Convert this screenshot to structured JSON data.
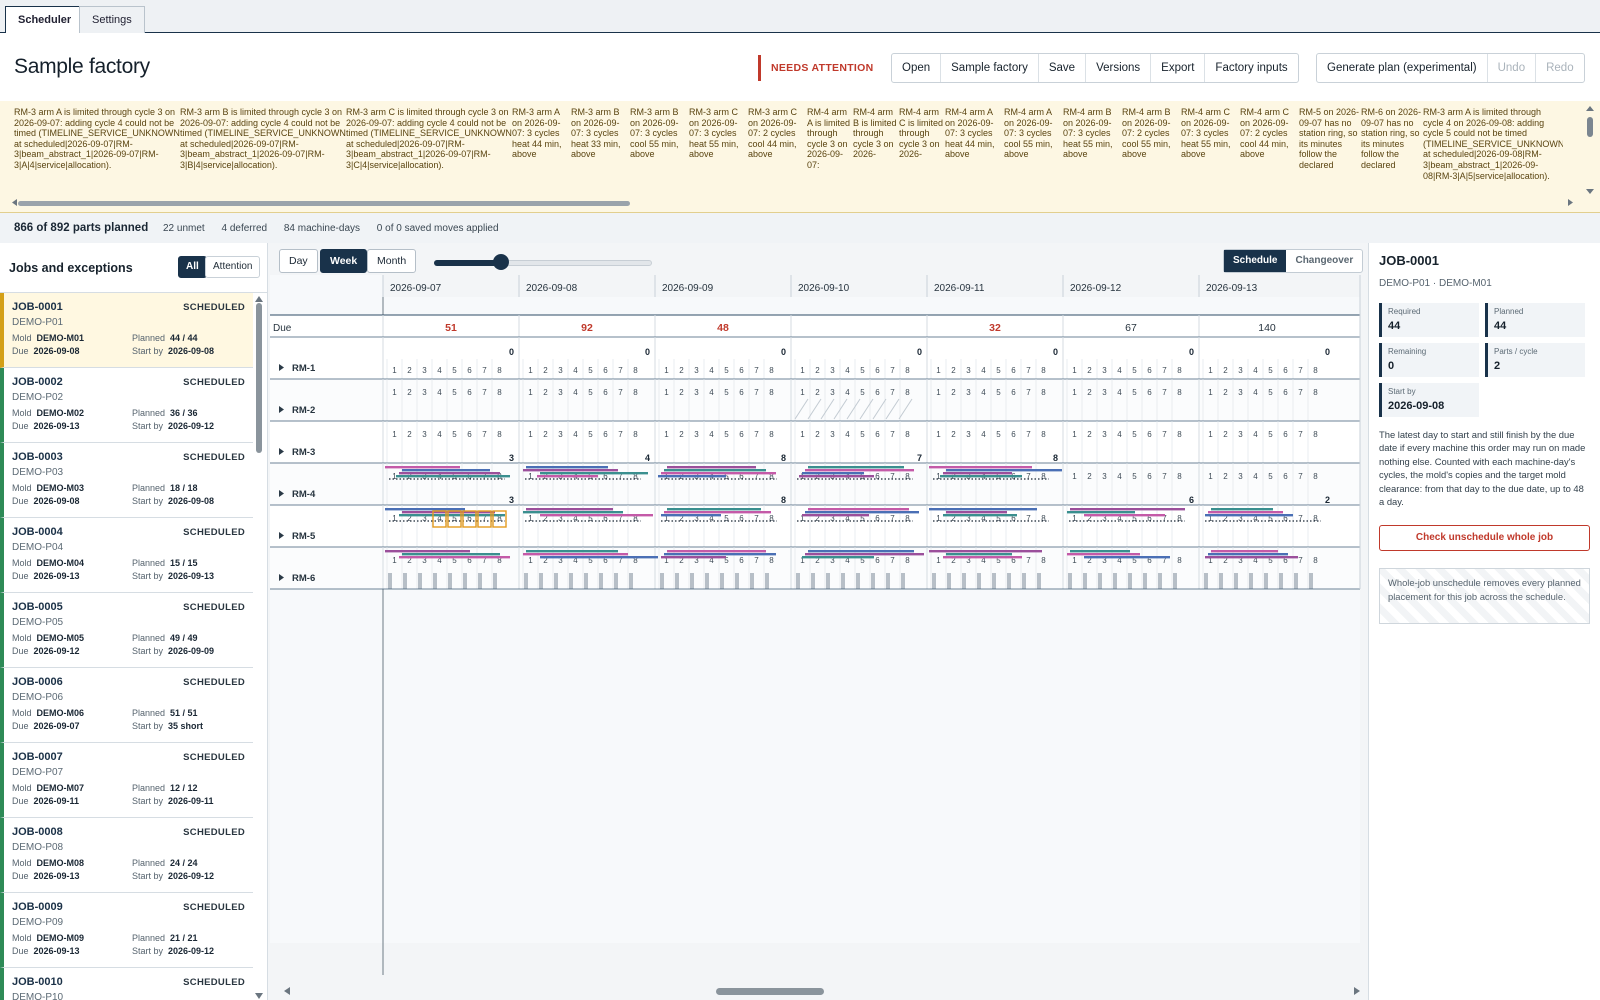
{
  "tabs": [
    "Scheduler",
    "Settings"
  ],
  "header": {
    "title": "Sample factory",
    "attention": "NEEDS ATTENTION",
    "buttons": [
      "Open",
      "Sample factory",
      "Save",
      "Versions",
      "Export",
      "Factory inputs"
    ],
    "actions": [
      "Generate plan (experimental)",
      "Undo",
      "Redo"
    ]
  },
  "warnings": [
    "RM-3 arm A is limited through cycle 3 on 2026-09-07: adding cycle 4 could not be timed (TIMELINE_SERVICE_UNKNOWN at scheduled|2026-09-07|RM-3|beam_abstract_1|2026-09-07|RM-3|A|4|service|allocation).",
    "RM-3 arm B is limited through cycle 3 on 2026-09-07: adding cycle 4 could not be timed (TIMELINE_SERVICE_UNKNOWN at scheduled|2026-09-07|RM-3|beam_abstract_1|2026-09-07|RM-3|B|4|service|allocation).",
    "RM-3 arm C is limited through cycle 3 on 2026-09-07: adding cycle 4 could not be timed (TIMELINE_SERVICE_UNKNOWN at scheduled|2026-09-07|RM-3|beam_abstract_1|2026-09-07|RM-3|C|4|service|allocation).",
    "RM-3 arm A on 2026-09-07: 3 cycles heat 44 min, above",
    "RM-3 arm B on 2026-09-07: 3 cycles heat 33 min, above",
    "RM-3 arm B on 2026-09-07: 3 cycles cool 55 min, above",
    "RM-3 arm C on 2026-09-07: 3 cycles heat 55 min, above",
    "RM-3 arm C on 2026-09-07: 2 cycles cool 44 min, above",
    "RM-4 arm A is limited through cycle 3 on 2026-09-07:",
    "RM-4 arm B is limited through cycle 3 on 2026-",
    "RM-4 arm C is limited through cycle 3 on 2026-",
    "RM-4 arm A on 2026-09-07: 3 cycles heat 44 min, above",
    "RM-4 arm A on 2026-09-07: 3 cycles cool 55 min, above",
    "RM-4 arm B on 2026-09-07: 3 cycles heat 55 min, above",
    "RM-4 arm B on 2026-09-07: 2 cycles cool 55 min, above",
    "RM-4 arm C on 2026-09-07: 3 cycles heat 55 min, above",
    "RM-4 arm C on 2026-09-07: 2 cycles cool 44 min, above",
    "RM-5 on 2026-09-07 has no station ring, so its minutes follow the declared",
    "RM-6 on 2026-09-07 has no station ring, so its minutes follow the declared",
    "RM-3 arm A is limited through cycle 4 on 2026-09-08: adding cycle 5 could not be timed (TIMELINE_SERVICE_UNKNOWN at scheduled|2026-09-08|RM-3|beam_abstract_1|2026-09-08|RM-3|A|5|service|allocation)."
  ],
  "stats": {
    "planned": "866 of 892 parts planned",
    "unmet": "22 unmet",
    "deferred": "4 deferred",
    "machine_days": "84 machine-days",
    "moves": "0 of 0 saved moves applied"
  },
  "jobs_panel": {
    "title": "Jobs and exceptions",
    "filters": [
      "All",
      "Attention"
    ],
    "labels": {
      "mold": "Mold",
      "due": "Due",
      "planned": "Planned",
      "start_by": "Start by"
    },
    "jobs": [
      {
        "id": "JOB-0001",
        "status": "SCHEDULED",
        "product": "DEMO-P01",
        "mold": "DEMO-M01",
        "due": "2026-09-08",
        "planned": "44 / 44",
        "start_by": "2026-09-08"
      },
      {
        "id": "JOB-0002",
        "status": "SCHEDULED",
        "product": "DEMO-P02",
        "mold": "DEMO-M02",
        "due": "2026-09-13",
        "planned": "36 / 36",
        "start_by": "2026-09-12"
      },
      {
        "id": "JOB-0003",
        "status": "SCHEDULED",
        "product": "DEMO-P03",
        "mold": "DEMO-M03",
        "due": "2026-09-08",
        "planned": "18 / 18",
        "start_by": "2026-09-08"
      },
      {
        "id": "JOB-0004",
        "status": "SCHEDULED",
        "product": "DEMO-P04",
        "mold": "DEMO-M04",
        "due": "2026-09-13",
        "planned": "15 / 15",
        "start_by": "2026-09-13"
      },
      {
        "id": "JOB-0005",
        "status": "SCHEDULED",
        "product": "DEMO-P05",
        "mold": "DEMO-M05",
        "due": "2026-09-12",
        "planned": "49 / 49",
        "start_by": "2026-09-09"
      },
      {
        "id": "JOB-0006",
        "status": "SCHEDULED",
        "product": "DEMO-P06",
        "mold": "DEMO-M06",
        "due": "2026-09-07",
        "planned": "51 / 51",
        "start_by": "35 short"
      },
      {
        "id": "JOB-0007",
        "status": "SCHEDULED",
        "product": "DEMO-P07",
        "mold": "DEMO-M07",
        "due": "2026-09-11",
        "planned": "12 / 12",
        "start_by": "2026-09-11"
      },
      {
        "id": "JOB-0008",
        "status": "SCHEDULED",
        "product": "DEMO-P08",
        "mold": "DEMO-M08",
        "due": "2026-09-13",
        "planned": "24 / 24",
        "start_by": "2026-09-12"
      },
      {
        "id": "JOB-0009",
        "status": "SCHEDULED",
        "product": "DEMO-P09",
        "mold": "DEMO-M09",
        "due": "2026-09-13",
        "planned": "21 / 21",
        "start_by": "2026-09-12"
      },
      {
        "id": "JOB-0010",
        "status": "SCHEDULED",
        "product": "DEMO-P10",
        "mold": "",
        "due": "",
        "planned": "",
        "start_by": ""
      }
    ]
  },
  "schedule": {
    "views": [
      "Day",
      "Week",
      "Month"
    ],
    "active_view": "Week",
    "zoom": 0.3,
    "modes": [
      "Schedule",
      "Changeover"
    ],
    "due_label": "Due",
    "dates": [
      "2026-09-07",
      "2026-09-08",
      "2026-09-09",
      "2026-09-10",
      "2026-09-11",
      "2026-09-12",
      "2026-09-13"
    ],
    "due_counts": [
      "51",
      "92",
      "48",
      "",
      "32",
      "67",
      "140"
    ],
    "due_alert": [
      true,
      true,
      true,
      false,
      true,
      false,
      false
    ],
    "cycles": [
      "1",
      "2",
      "3",
      "4",
      "5",
      "6",
      "7",
      "8"
    ],
    "machines": [
      {
        "name": "RM-1",
        "day_counts": [
          "0",
          "0",
          "0",
          "0",
          "0",
          "0",
          "0"
        ]
      },
      {
        "name": "RM-2",
        "day_counts": [
          "",
          "",
          "",
          "",
          "",
          "",
          ""
        ]
      },
      {
        "name": "RM-3",
        "day_counts": [
          "3",
          "4",
          "8",
          "7",
          "8",
          "",
          ""
        ]
      },
      {
        "name": "RM-4",
        "day_counts": [
          "3",
          "",
          "8",
          "",
          "",
          "6",
          "2"
        ]
      },
      {
        "name": "RM-5",
        "day_counts": [
          "",
          "",
          "",
          "",
          "",
          "",
          ""
        ]
      },
      {
        "name": "RM-6",
        "day_counts": [
          "",
          "",
          "",
          "",
          "",
          "",
          ""
        ]
      }
    ],
    "colors": {
      "accent": "#19324a",
      "alert": "#c0392b",
      "bar_blue": "#4a6fb5",
      "bar_purple": "#9b4f9b",
      "bar_teal": "#3a8f8f",
      "bar_pink": "#c45aa8"
    }
  },
  "details": {
    "title": "JOB-0001",
    "subtitle": "DEMO-P01 · DEMO-M01",
    "cards": [
      {
        "label": "Required",
        "value": "44"
      },
      {
        "label": "Planned",
        "value": "44"
      },
      {
        "label": "Remaining",
        "value": "0"
      },
      {
        "label": "Parts / cycle",
        "value": "2"
      },
      {
        "label": "Start by",
        "value": "2026-09-08"
      }
    ],
    "description": "The latest day to start and still finish by the due date if every machine this order may run on made nothing else. Counted with each machine-day's cycles, the mold's copies and the target mold clearance: from that day to the due date, up to 48 a day.",
    "danger_button": "Check unschedule whole job",
    "note": "Whole-job unschedule removes every planned placement for this job across the schedule."
  }
}
